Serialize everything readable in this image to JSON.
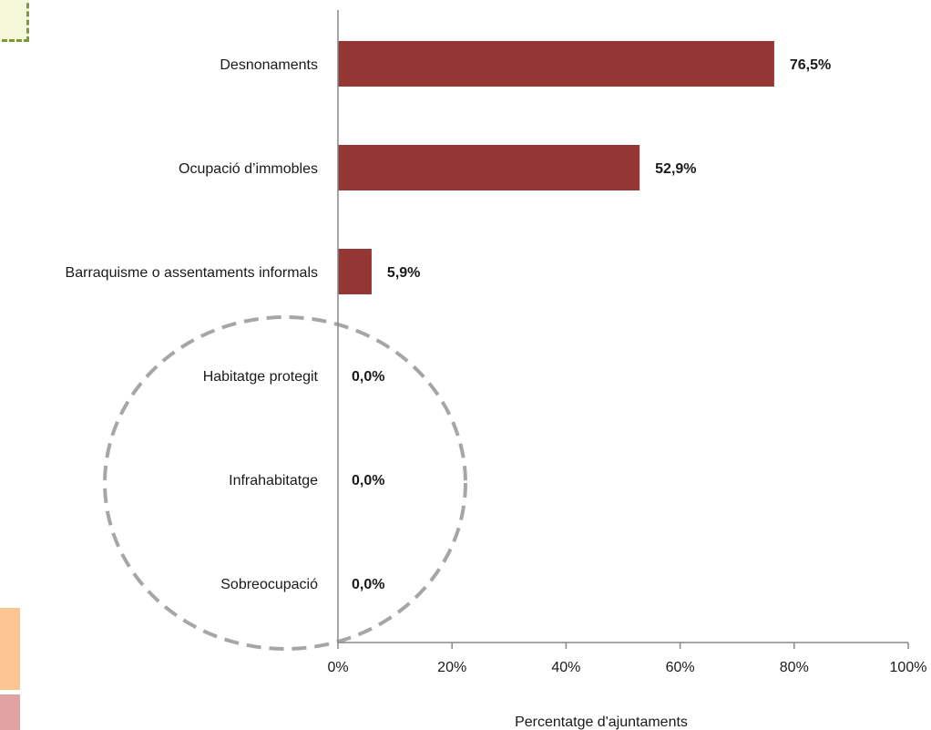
{
  "chart_data": {
    "type": "bar",
    "orientation": "horizontal",
    "categories": [
      "Desnonaments",
      "Ocupació d’immobles",
      "Barraquisme o assentaments informals",
      "Habitatge protegit",
      "Infrahabitatge",
      "Sobreocupació"
    ],
    "values": [
      76.5,
      52.9,
      5.9,
      0.0,
      0.0,
      0.0
    ],
    "value_labels": [
      "76,5%",
      "52,9%",
      "5,9%",
      "0,0%",
      "0,0%",
      "0,0%"
    ],
    "xlabel": "Percentatge d'ajuntaments",
    "xlim": [
      0,
      100
    ],
    "x_ticks": [
      0,
      20,
      40,
      60,
      80,
      100
    ],
    "x_tick_labels": [
      "0%",
      "20%",
      "40%",
      "60%",
      "80%",
      "100%"
    ],
    "grid": false,
    "bar_color": "#943634",
    "annotation": "dashed grey circle around the zero-valued categories",
    "annotation_color": "#a6a6a6"
  },
  "decorations": {
    "top_left_box_color": "#7a9a3a",
    "bottom_left_colors": [
      "#fbc490",
      "#e0a2a2"
    ]
  }
}
